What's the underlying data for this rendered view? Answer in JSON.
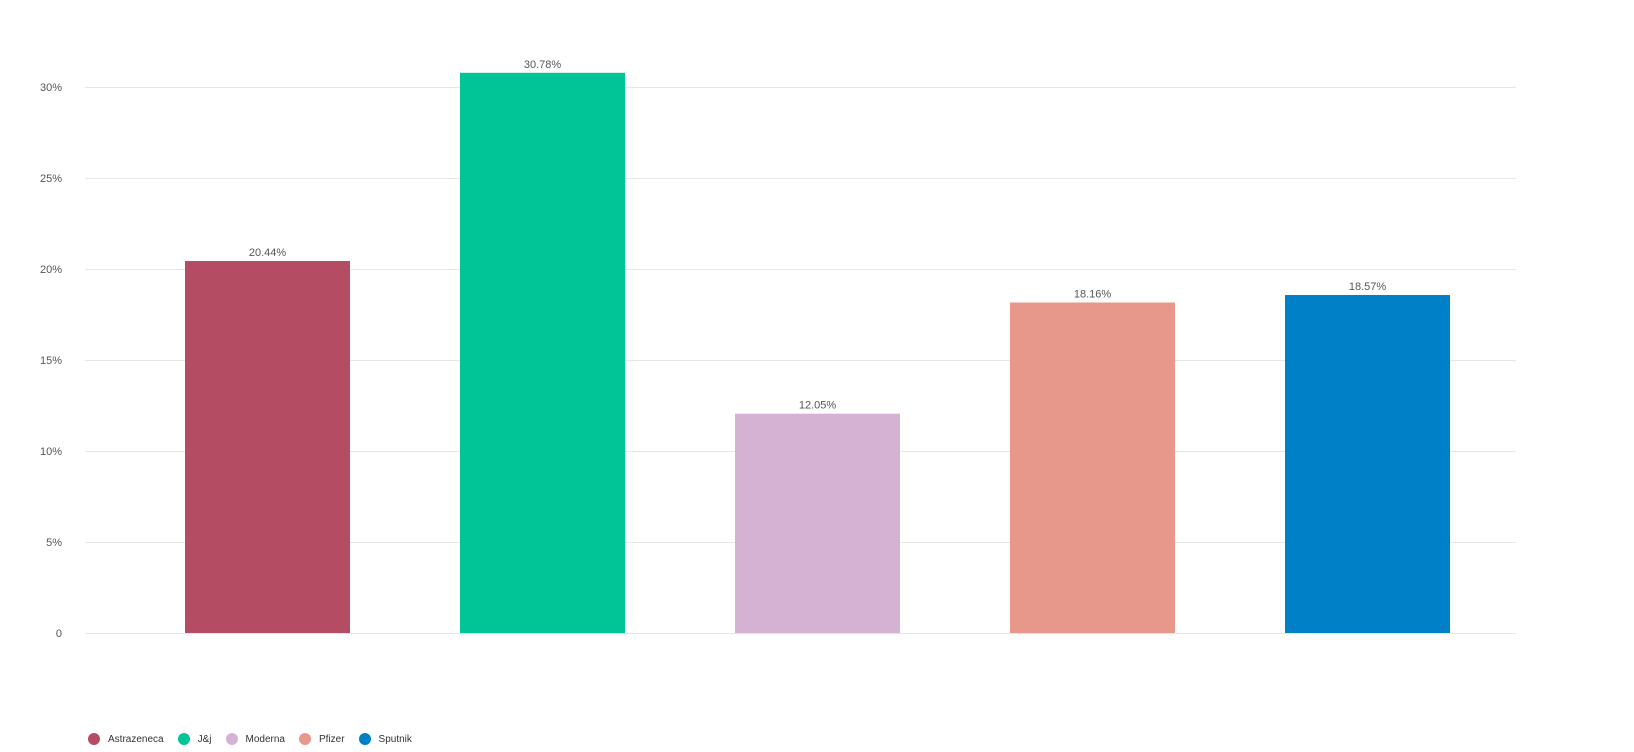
{
  "chart_data": {
    "type": "bar",
    "title": "",
    "xlabel": "",
    "ylabel": "",
    "categories": [
      "Astrazeneca",
      "J&j",
      "Moderna",
      "Pfizer",
      "Sputnik"
    ],
    "values": [
      20.44,
      30.78,
      12.05,
      18.16,
      18.57
    ],
    "data_labels": [
      "20.44%",
      "30.78%",
      "12.05%",
      "18.16%",
      "18.57%"
    ],
    "colors": [
      "#b44d64",
      "#00c596",
      "#d5b2d4",
      "#e8988a",
      "#0080c6"
    ],
    "ylim": [
      0,
      30
    ],
    "yticks": [
      0,
      5,
      10,
      15,
      20,
      25,
      30
    ],
    "ytick_labels": [
      "0",
      "5%",
      "10%",
      "15%",
      "20%",
      "25%",
      "30%"
    ],
    "grid": true,
    "legend_position": "bottom-left"
  },
  "legend": {
    "items": [
      {
        "label": "Astrazeneca",
        "color": "#b44d64"
      },
      {
        "label": "J&j",
        "color": "#00c596"
      },
      {
        "label": "Moderna",
        "color": "#d5b2d4"
      },
      {
        "label": "Pfizer",
        "color": "#e8988a"
      },
      {
        "label": "Sputnik",
        "color": "#0080c6"
      }
    ]
  }
}
